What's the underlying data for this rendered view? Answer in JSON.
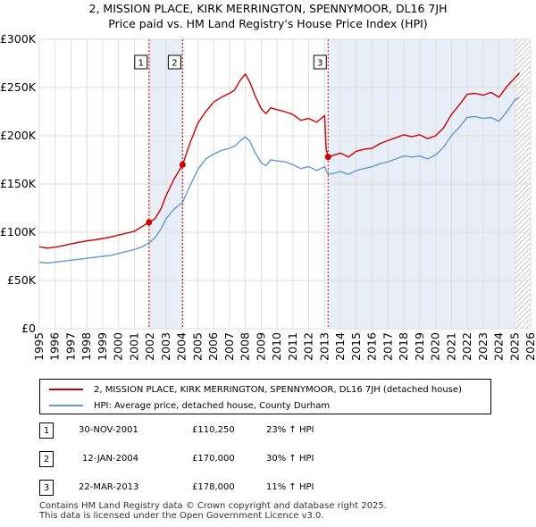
{
  "chart_data": {
    "type": "line",
    "title": "2, MISSION PLACE, KIRK MERRINGTON, SPENNYMOOR, DL16 7JH",
    "subtitle": "Price paid vs. HM Land Registry's House Price Index (HPI)",
    "xlim": [
      1995,
      2026
    ],
    "ylim": [
      0,
      300000
    ],
    "x_ticks": [
      1995,
      1996,
      1997,
      1998,
      1999,
      2000,
      2001,
      2002,
      2003,
      2004,
      2005,
      2006,
      2007,
      2008,
      2009,
      2010,
      2011,
      2012,
      2013,
      2014,
      2015,
      2016,
      2017,
      2018,
      2019,
      2020,
      2021,
      2022,
      2023,
      2024,
      2025,
      2026
    ],
    "y_ticks": [
      0,
      50000,
      100000,
      150000,
      200000,
      250000,
      300000
    ],
    "y_tick_labels": [
      "£0",
      "£50K",
      "£100K",
      "£150K",
      "£200K",
      "£250K",
      "£300K"
    ],
    "grid": true,
    "forecast_hatch_from": 2025.0,
    "series": [
      {
        "name": "2, MISSION PLACE, KIRK MERRINGTON, SPENNYMOOR, DL16 7JH (detached house)",
        "color": "#cc0000",
        "x": [
          1995,
          1995.5,
          1996,
          1996.5,
          1997,
          1997.5,
          1998,
          1998.5,
          1999,
          1999.5,
          2000,
          2000.5,
          2001,
          2001.5,
          2001.92,
          2002.3,
          2002.7,
          2003,
          2003.5,
          2004.04,
          2004.5,
          2005,
          2005.5,
          2006,
          2006.5,
          2007,
          2007.3,
          2007.7,
          2008,
          2008.3,
          2008.6,
          2009,
          2009.3,
          2009.6,
          2010,
          2010.5,
          2011,
          2011.5,
          2012,
          2012.5,
          2013,
          2013.1,
          2013.22,
          2013.6,
          2014,
          2014.5,
          2015,
          2015.5,
          2016,
          2016.5,
          2017,
          2017.5,
          2018,
          2018.5,
          2019,
          2019.5,
          2020,
          2020.5,
          2021,
          2021.5,
          2022,
          2022.5,
          2023,
          2023.5,
          2024,
          2024.5,
          2025.0,
          2025.3
        ],
        "y": [
          85000,
          83500,
          84500,
          86000,
          88000,
          89500,
          91000,
          92000,
          93500,
          95000,
          97000,
          99000,
          101000,
          106000,
          110250,
          114000,
          125000,
          138000,
          155000,
          170000,
          192000,
          213000,
          225000,
          235000,
          240000,
          244000,
          247000,
          258000,
          264000,
          255000,
          242000,
          228000,
          223000,
          229000,
          227000,
          225000,
          222000,
          216000,
          218000,
          214000,
          221000,
          186000,
          178000,
          180000,
          182000,
          178000,
          184000,
          186000,
          187000,
          192000,
          195000,
          198000,
          201000,
          199000,
          201000,
          197000,
          200000,
          208000,
          222000,
          232000,
          243000,
          244000,
          242000,
          245000,
          240000,
          251000,
          260000,
          265000
        ]
      },
      {
        "name": "HPI: Average price, detached house, County Durham",
        "color": "#6699cc",
        "x": [
          1995,
          1995.5,
          1996,
          1996.5,
          1997,
          1997.5,
          1998,
          1998.5,
          1999,
          1999.5,
          2000,
          2000.5,
          2001,
          2001.5,
          2001.92,
          2002.3,
          2002.7,
          2003,
          2003.5,
          2004.04,
          2004.5,
          2005,
          2005.5,
          2006,
          2006.5,
          2007,
          2007.3,
          2007.7,
          2008,
          2008.3,
          2008.6,
          2009,
          2009.3,
          2009.6,
          2010,
          2010.5,
          2011,
          2011.5,
          2012,
          2012.5,
          2013,
          2013.22,
          2013.6,
          2014,
          2014.5,
          2015,
          2015.5,
          2016,
          2016.5,
          2017,
          2017.5,
          2018,
          2018.5,
          2019,
          2019.5,
          2020,
          2020.5,
          2021,
          2021.5,
          2022,
          2022.5,
          2023,
          2023.5,
          2024,
          2024.5,
          2025.0,
          2025.3
        ],
        "y": [
          69000,
          68000,
          69000,
          70000,
          71000,
          72000,
          73000,
          74000,
          75000,
          76000,
          78000,
          80000,
          82000,
          85000,
          89000,
          94000,
          104000,
          114000,
          124000,
          131000,
          148000,
          165000,
          176000,
          181000,
          185000,
          187000,
          189000,
          195000,
          199000,
          194000,
          183000,
          172000,
          169000,
          175000,
          174000,
          173000,
          170000,
          166000,
          168000,
          164000,
          168000,
          160000,
          161000,
          163000,
          160000,
          164000,
          166000,
          168000,
          171000,
          173000,
          176000,
          179000,
          178000,
          179000,
          176000,
          180000,
          188000,
          200000,
          209000,
          219000,
          220000,
          218000,
          219000,
          215000,
          225000,
          237000,
          240000
        ]
      }
    ],
    "sales": [
      {
        "label": "1",
        "x": 2001.92,
        "y": 110250
      },
      {
        "label": "2",
        "x": 2004.04,
        "y": 170000
      },
      {
        "label": "3",
        "x": 2013.22,
        "y": 178000
      }
    ],
    "shaded_ranges": [
      [
        2001.92,
        2004.04
      ]
    ]
  },
  "legend": {
    "property": "2, MISSION PLACE, KIRK MERRINGTON, SPENNYMOOR, DL16 7JH (detached house)",
    "hpi": "HPI: Average price, detached house, County Durham",
    "property_color": "#cc0000",
    "hpi_color": "#6699cc"
  },
  "table": [
    {
      "num": "1",
      "date": "30-NOV-2001",
      "price": "£110,250",
      "hpi": "23% ↑ HPI"
    },
    {
      "num": "2",
      "date": "12-JAN-2004",
      "price": "£170,000",
      "hpi": "30% ↑ HPI"
    },
    {
      "num": "3",
      "date": "22-MAR-2013",
      "price": "£178,000",
      "hpi": "11% ↑ HPI"
    }
  ],
  "footer": {
    "line1": "Contains HM Land Registry data © Crown copyright and database right 2025.",
    "line2": "This data is licensed under the Open Government Licence v3.0."
  }
}
